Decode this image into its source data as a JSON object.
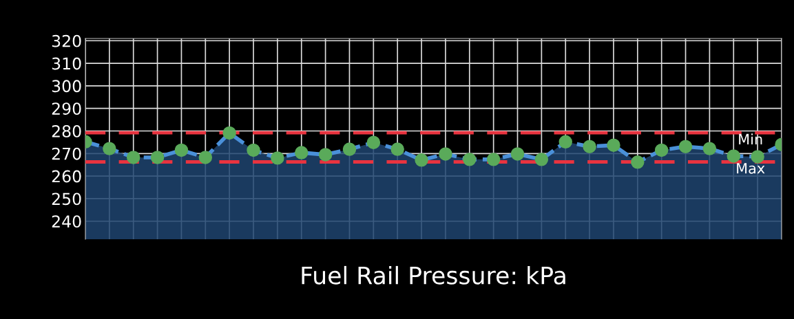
{
  "chart_data": {
    "type": "area",
    "xlabel": "Fuel Rail Pressure: kPa",
    "categories": [
      null,
      null,
      null,
      null,
      null,
      null,
      null,
      null,
      null,
      null,
      null,
      null,
      null,
      null,
      null,
      null,
      null,
      null,
      null,
      null,
      null,
      null,
      null,
      null,
      null,
      null,
      null,
      null,
      null,
      null
    ],
    "series": [
      {
        "color": "#4a90d9",
        "values": [
          275.2,
          272.2,
          268.3,
          268.3,
          271.5,
          268.3,
          279.1,
          271.5,
          268,
          270.4,
          269.5,
          271.9,
          274.9,
          271.9,
          267.1,
          269.8,
          267.4,
          267.4,
          269.8,
          267.4,
          275.2,
          273.1,
          273.7,
          266.2,
          271.5,
          273.1,
          272.2,
          268.9,
          268.6,
          274
        ]
      }
    ],
    "ylim": [
      232,
      321
    ],
    "yticks": [
      240,
      250,
      260,
      270,
      280,
      290,
      300,
      310,
      320
    ],
    "ref_lines": [
      {
        "axis": "y",
        "value": 279.2,
        "label": "Min",
        "color": "#e8333f",
        "line_style": "dashed"
      },
      {
        "axis": "y",
        "value": 266.3,
        "label": "Max",
        "color": "#e8333f",
        "line_style": "dashed"
      }
    ],
    "grid": true,
    "marker": "circle",
    "line_style": "dashed",
    "tick_labels": "y"
  }
}
